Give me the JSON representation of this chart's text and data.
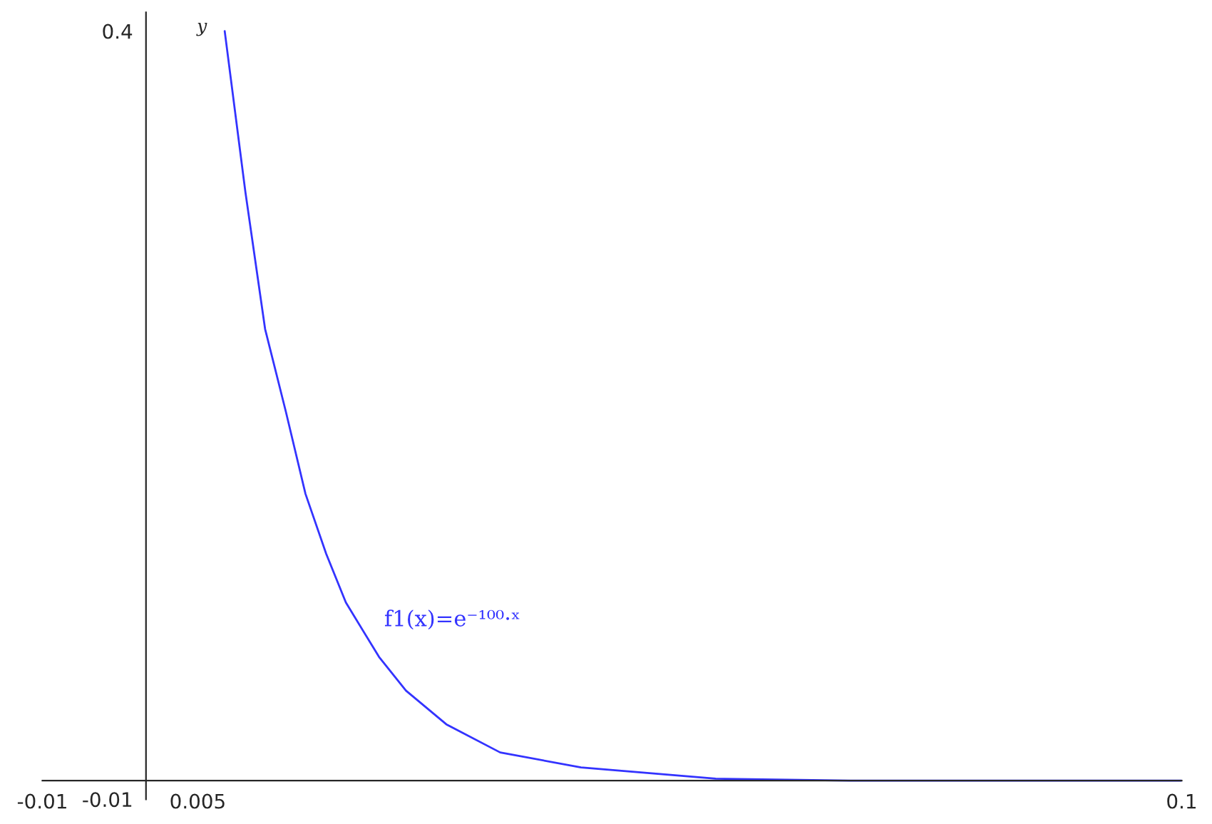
{
  "chart_data": {
    "type": "line",
    "ylabel": "y",
    "x": [
      0.0076,
      0.0096,
      0.0115,
      0.0135,
      0.0154,
      0.0174,
      0.0193,
      0.0225,
      0.0251,
      0.029,
      0.0342,
      0.042,
      0.055,
      0.068,
      0.1
    ],
    "series": [
      {
        "color": "#3333ff",
        "values": [
          0.4,
          0.314,
          0.241,
          0.197,
          0.153,
          0.121,
          0.095,
          0.066,
          0.048,
          0.03,
          0.015,
          0.007,
          0.001,
          0,
          0
        ]
      }
    ],
    "annotations": [
      "f1(x)=e⁻¹⁰⁰·ˣ"
    ],
    "xlim": [
      -0.01,
      0.1
    ],
    "ylim": [
      -0.01,
      0.41
    ],
    "xticks": [
      -0.01,
      0.005,
      0.1
    ],
    "yticks": [
      -0.01,
      0.4
    ],
    "grid": false,
    "marker": "none",
    "line_style": "solid"
  }
}
